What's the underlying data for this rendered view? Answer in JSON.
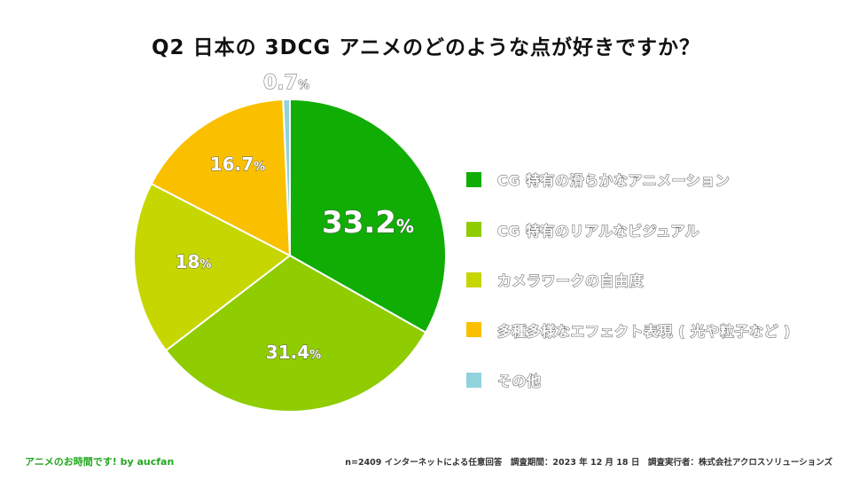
{
  "title": "Q2 日本の 3DCG アニメのどのような点が好きですか？",
  "chart_data": {
    "type": "pie",
    "title": "Q2 日本の 3DCG アニメのどのような点が好きですか？",
    "unit": "%",
    "start": "top, clockwise",
    "slices": [
      {
        "label": "CG 特有の滑らかなアニメーション",
        "value": 33.2,
        "display": "33.2",
        "color": "#10ad04"
      },
      {
        "label": "CG 特有のリアルなビジュアル",
        "value": 31.4,
        "display": "31.4",
        "color": "#8fcc00"
      },
      {
        "label": "カメラワークの自由度",
        "value": 18.0,
        "display": "18",
        "color": "#c6d600"
      },
      {
        "label": "多種多様なエフェクト表現 ( 光や粒子など )",
        "value": 16.7,
        "display": "16.7",
        "color": "#fac000"
      },
      {
        "label": "その他",
        "value": 0.7,
        "display": "0.7",
        "color": "#8fd3dc"
      }
    ]
  },
  "footer": {
    "brand": "アニメのお時間です! by aucfan",
    "note": "n=2409 インターネットによる任意回答　調査期間：2023 年 12 月 18 日　調査実行者：株式会社アクロスソリューションズ"
  }
}
